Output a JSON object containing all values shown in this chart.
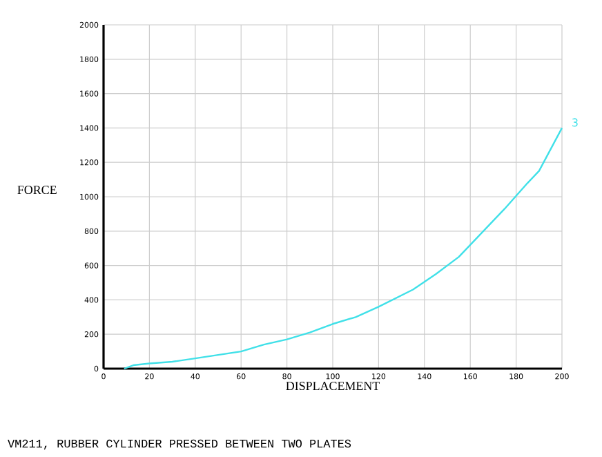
{
  "chart_data": {
    "type": "line",
    "x": [
      9,
      13,
      20,
      30,
      40,
      50,
      60,
      70,
      80,
      90,
      100,
      110,
      120,
      135,
      145,
      155,
      165,
      175,
      185,
      190,
      200
    ],
    "series": [
      {
        "name": "3",
        "color": "#40e0e8",
        "values": [
          0,
          20,
          30,
          40,
          60,
          80,
          100,
          140,
          170,
          210,
          260,
          300,
          360,
          460,
          550,
          650,
          790,
          930,
          1080,
          1150,
          1400
        ]
      }
    ],
    "xlabel": "DISPLACEMENT",
    "ylabel": "FORCE",
    "xlim": [
      0,
      200
    ],
    "ylim": [
      0,
      2000
    ],
    "xticks": [
      0,
      20,
      40,
      60,
      80,
      100,
      120,
      140,
      160,
      180,
      200
    ],
    "yticks": [
      0,
      200,
      400,
      600,
      800,
      1000,
      1200,
      1400,
      1600,
      1800,
      2000
    ],
    "grid": true,
    "marker": "none",
    "line_style": "solid",
    "annotations": [
      "VM211, RUBBER CYLINDER PRESSED BETWEEN TWO PLATES"
    ]
  }
}
